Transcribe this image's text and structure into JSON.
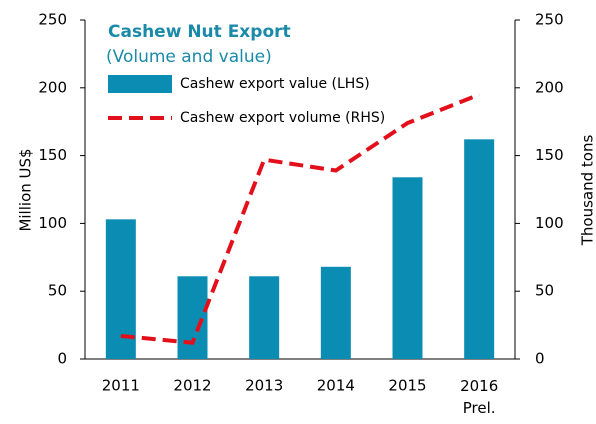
{
  "chart_data": {
    "type": "bar_line",
    "title": "Cashew Nut Export",
    "subtitle": "(Volume and value)",
    "ylabel": "Million US$",
    "y2label": "Thousand tons",
    "categories": [
      "2011",
      "2012",
      "2013",
      "2014",
      "2015",
      "2016\nPrel."
    ],
    "series": [
      {
        "name": "Cashew export value (LHS)",
        "color": "#0b8db3",
        "type": "bar",
        "values": [
          103,
          61,
          61,
          68,
          134,
          162
        ]
      },
      {
        "name": "Cashew export volume (RHS)",
        "color": "#e3101b",
        "type": "line",
        "axis": "y2",
        "values": [
          17,
          12,
          147,
          139,
          174,
          195
        ]
      }
    ],
    "ylim": [
      0,
      250
    ],
    "yticks": [
      0,
      50,
      100,
      150,
      200,
      250
    ],
    "y2lim": [
      0,
      250
    ],
    "y2ticks": [
      0,
      50,
      100,
      150,
      200,
      250
    ]
  }
}
